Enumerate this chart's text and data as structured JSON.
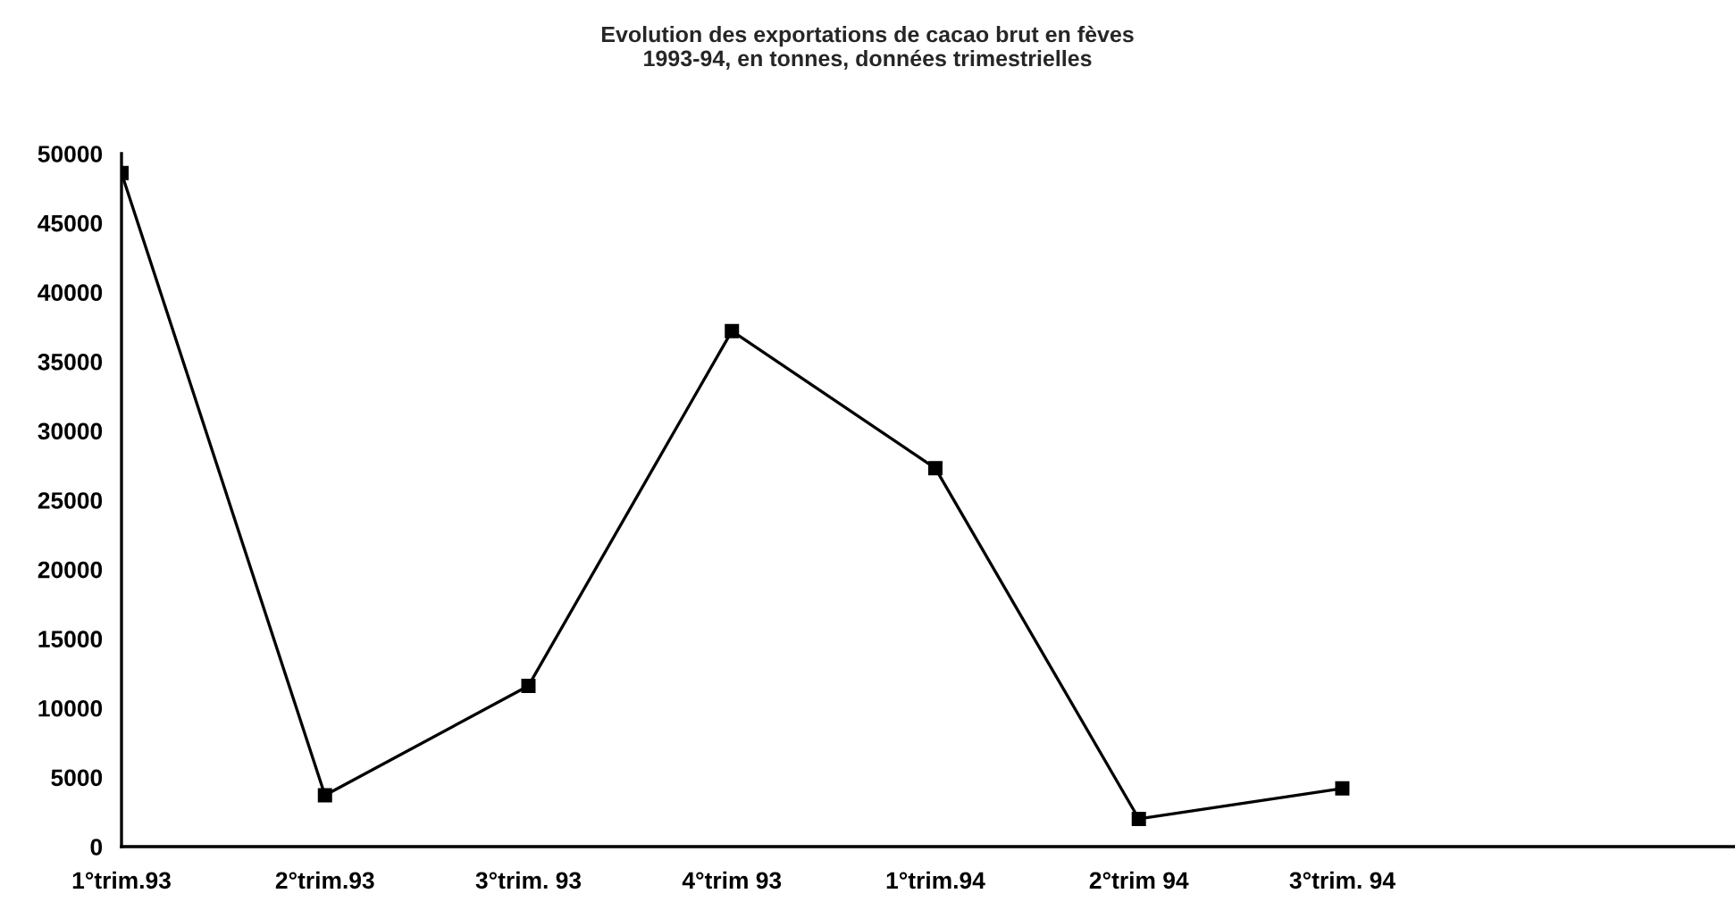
{
  "chart_data": {
    "type": "line",
    "title": "Evolution des exportations de cacao brut en fèves\n1993-94, en tonnes, données trimestrielles",
    "categories": [
      "1°trim.93",
      "2°trim.93",
      "3°trim. 93",
      "4°trim 93",
      "1°trim.94",
      "2°trim 94",
      "3°trim. 94",
      null
    ],
    "series": [
      {
        "color": "#000000",
        "values": [
          48600,
          3700,
          11600,
          37200,
          27300,
          2000,
          4200,
          null
        ]
      }
    ],
    "ylim": [
      0,
      50000
    ],
    "yticks": [
      0,
      5000,
      10000,
      15000,
      20000,
      25000,
      30000,
      35000,
      40000,
      45000,
      50000
    ],
    "grid": false,
    "marker": "square",
    "line_style": "solid"
  }
}
